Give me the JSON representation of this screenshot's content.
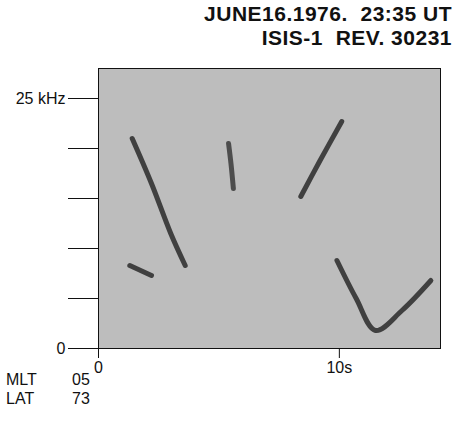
{
  "chart_data": {
    "type": "spectrogram",
    "title": "JUNE16.1976.  23:35 UT",
    "subtitle": "ISIS-1  REV. 30231",
    "color": "#bdbdbd",
    "xlim": [
      0,
      14.2
    ],
    "xticks": [
      0,
      {
        "value": 10,
        "label": "10s"
      }
    ],
    "ylim": [
      0,
      28
    ],
    "yticks": [
      0,
      {
        "value": 5,
        "label": null
      },
      {
        "value": 10,
        "label": null
      },
      {
        "value": 15,
        "label": null
      },
      {
        "value": 20,
        "label": null
      },
      {
        "value": 25,
        "label": "25 kHz"
      }
    ],
    "series": [
      {
        "color": "#2a2a2a",
        "x": [
          1.4,
          2.2,
          3.0,
          3.6
        ],
        "values": [
          21.0,
          16.5,
          11.5,
          8.3
        ]
      },
      {
        "color": "#2a2a2a",
        "x": [
          1.3,
          2.2
        ],
        "values": [
          8.3,
          7.3
        ]
      },
      {
        "color": "#3a3a3a",
        "x": [
          5.4,
          5.5,
          5.6
        ],
        "values": [
          20.5,
          18.5,
          16.0
        ]
      },
      {
        "color": "#2a2a2a",
        "x": [
          8.4,
          9.2,
          10.1
        ],
        "values": [
          15.2,
          18.8,
          22.7
        ]
      },
      {
        "color": "#2a2a2a",
        "x": [
          9.9,
          10.7,
          11.5,
          12.6,
          13.8
        ],
        "values": [
          8.8,
          5.0,
          1.8,
          3.8,
          6.8
        ]
      }
    ],
    "annotations": [
      {
        "label": "MLT",
        "value": "05"
      },
      {
        "label": "LAT",
        "value": "73"
      }
    ]
  }
}
